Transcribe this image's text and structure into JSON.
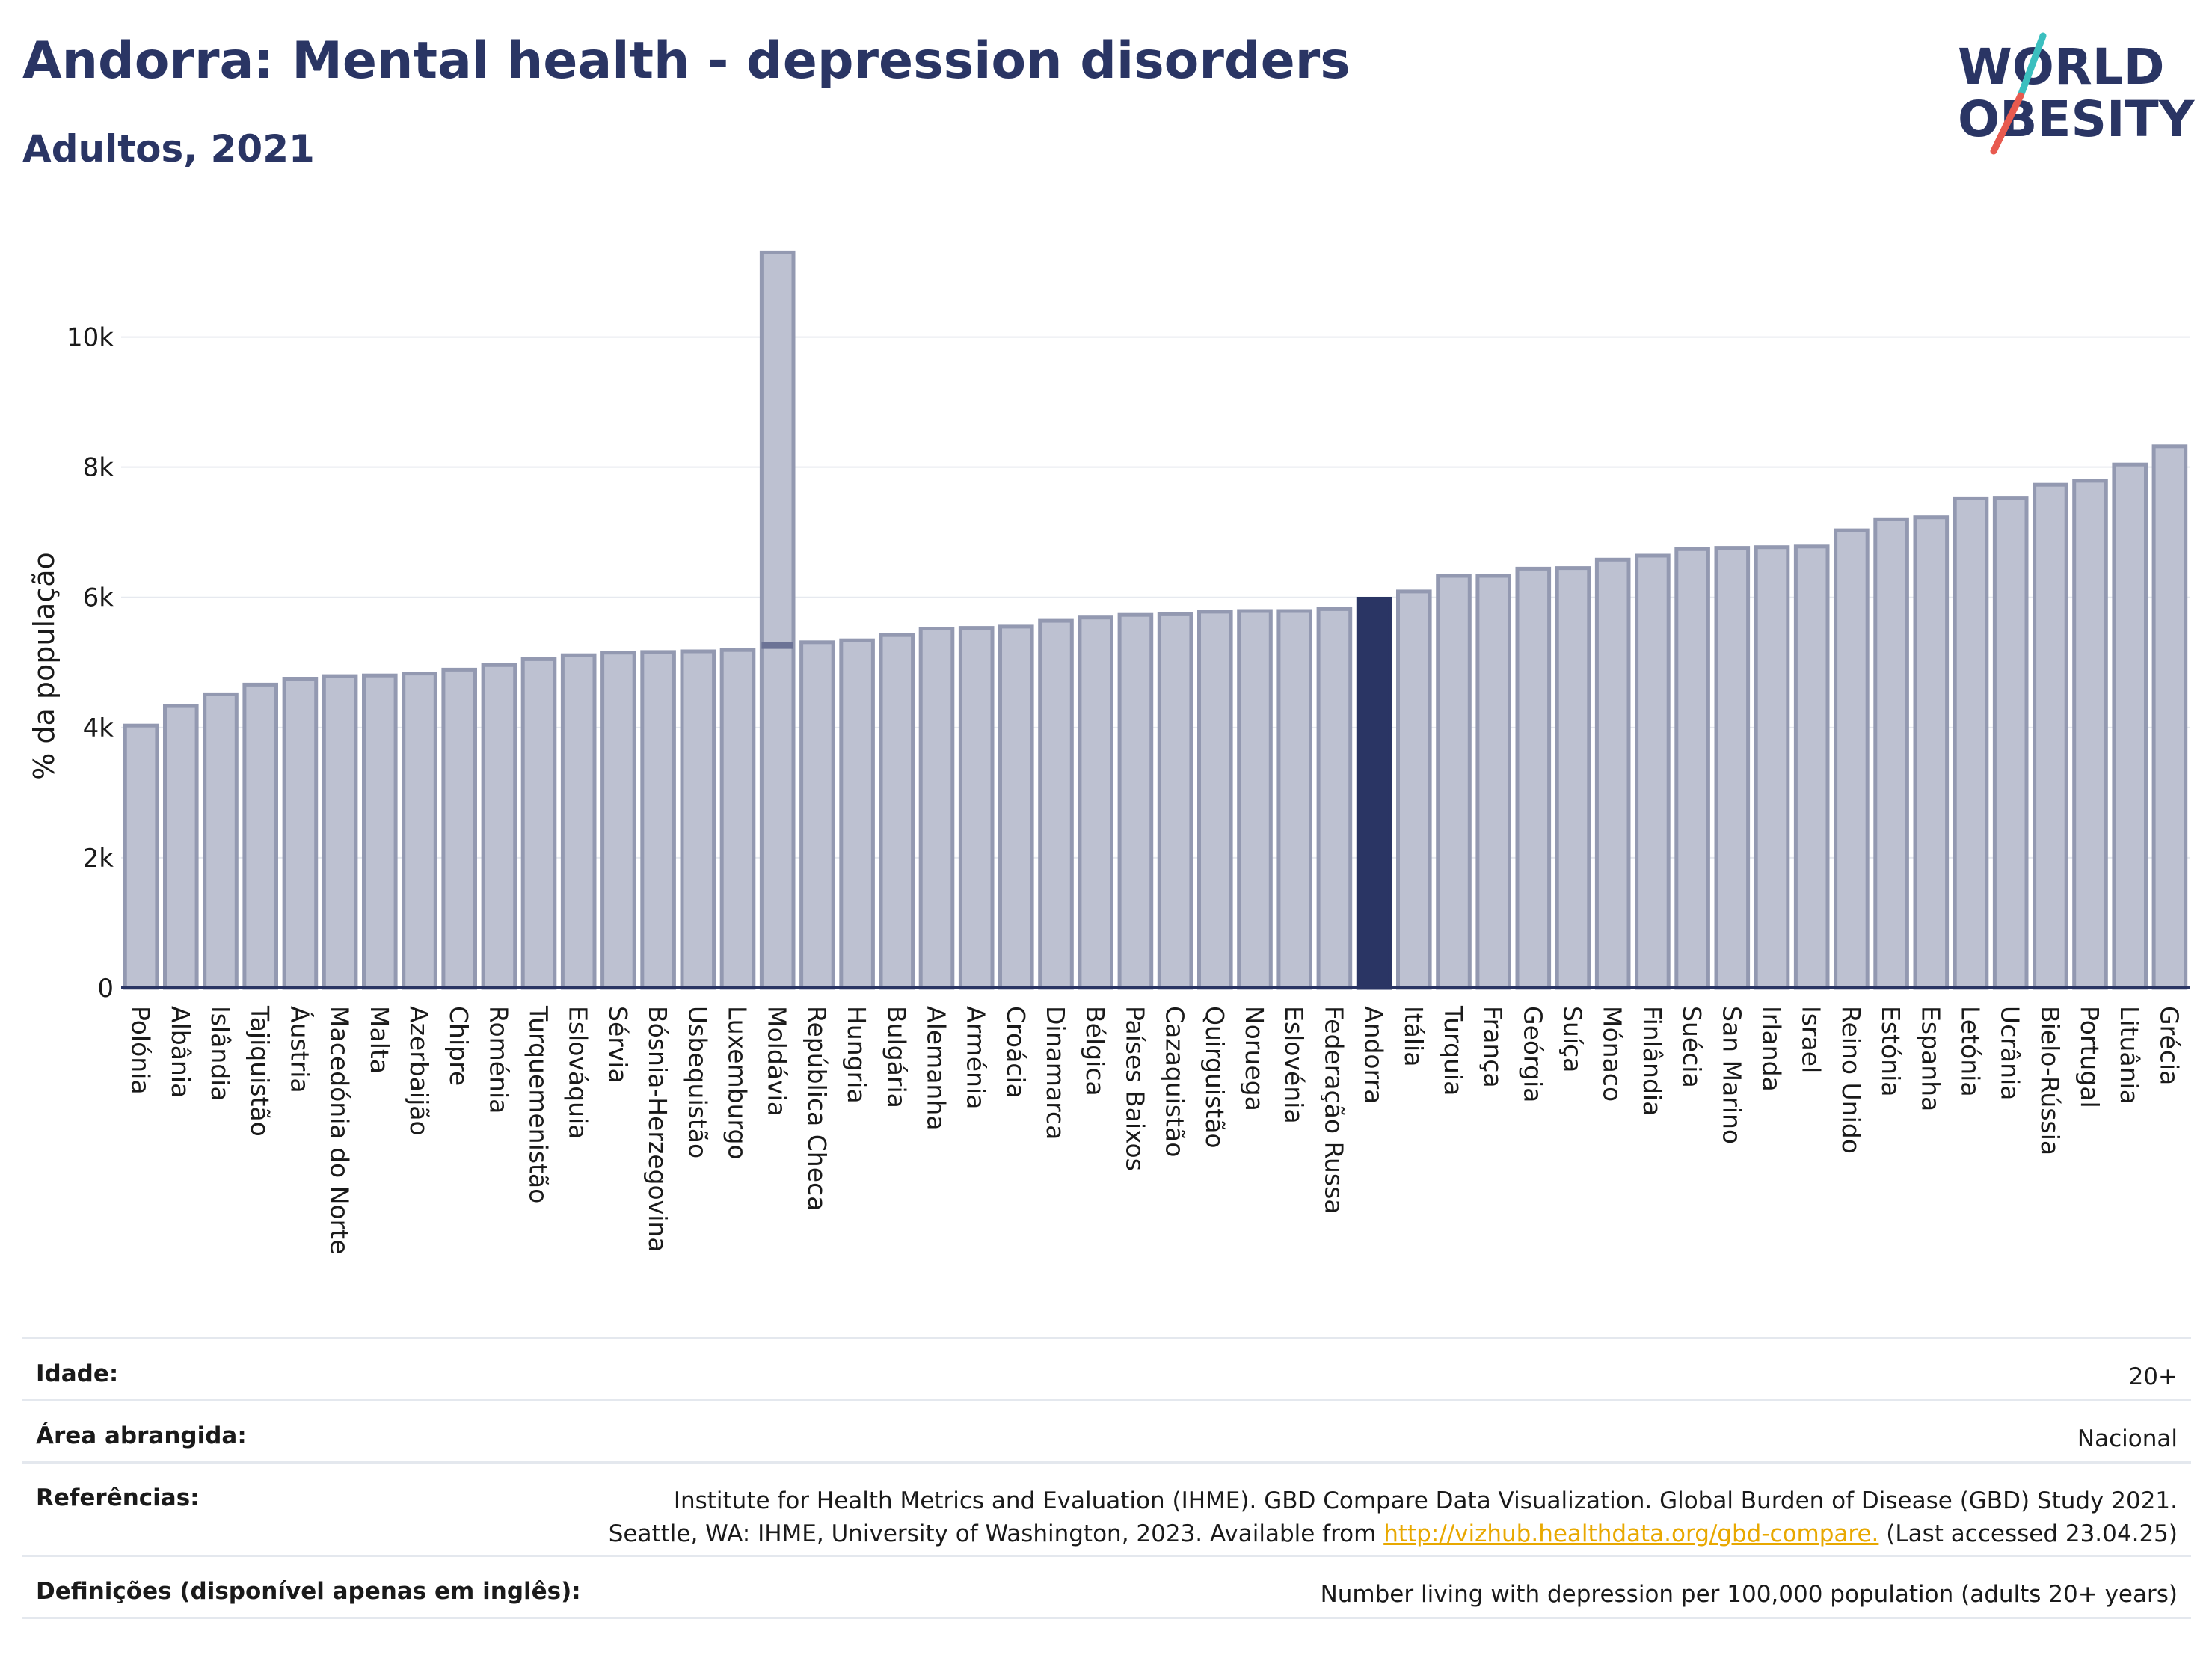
{
  "header": {
    "title": "Andorra: Mental health - depression disorders",
    "subtitle": "Adultos, 2021"
  },
  "logo": {
    "line1": "WORLD",
    "line2": "OBESITY",
    "color": "#2a3564",
    "slash_top": "#3bbfbf",
    "slash_bottom": "#e85a4f"
  },
  "chart_data": {
    "type": "bar",
    "ylabel": "% da população",
    "ylim": [
      0,
      11500
    ],
    "yticks": [
      0,
      2000,
      4000,
      6000,
      8000,
      10000
    ],
    "ytick_labels": [
      "0",
      "2k",
      "4k",
      "6k",
      "8k",
      "10k"
    ],
    "grid": true,
    "highlight": "Andorra",
    "colors": {
      "bar": "#bdc1d1",
      "bar_edge": "#9399b1",
      "highlight": "#2a3564",
      "axis": "#2a3564"
    },
    "categories": [
      "Polónia",
      "Albânia",
      "Islândia",
      "Tajiquistão",
      "Áustria",
      "Macedónia do Norte",
      "Malta",
      "Azerbaijão",
      "Chipre",
      "Roménia",
      "Turquemenistão",
      "Eslováquia",
      "Sérvia",
      "Bósnia-Herzegovina",
      "Usbequistão",
      "Luxemburgo",
      "Moldávia",
      "República Checa",
      "Hungria",
      "Bulgária",
      "Alemanha",
      "Arménia",
      "Croácia",
      "Dinamarca",
      "Bélgica",
      "Países Baixos",
      "Cazaquistão",
      "Quirguistão",
      "Noruega",
      "Eslovénia",
      "Federação Russa",
      "Andorra",
      "Itália",
      "Turquia",
      "França",
      "Geórgia",
      "Suíça",
      "Mónaco",
      "Finlândia",
      "Suécia",
      "San Marino",
      "Irlanda",
      "Israel",
      "Reino Unido",
      "Estónia",
      "Espanha",
      "Letónia",
      "Ucrânia",
      "Bielo-Rússia",
      "Portugal",
      "Lituânia",
      "Grécia"
    ],
    "values": [
      4030,
      4330,
      4510,
      4660,
      4750,
      4790,
      4800,
      4830,
      4890,
      4960,
      5050,
      5110,
      5150,
      5160,
      5170,
      5190,
      11300,
      5310,
      5340,
      5420,
      5520,
      5530,
      5550,
      5640,
      5690,
      5730,
      5740,
      5780,
      5790,
      5790,
      5820,
      5980,
      6090,
      6330,
      6330,
      6440,
      6450,
      6580,
      6640,
      6740,
      6760,
      6770,
      6780,
      7030,
      7200,
      7230,
      7520,
      7530,
      7730,
      7790,
      8040,
      8320
    ],
    "secondary_mark": {
      "category": "Moldávia",
      "value": 5260
    }
  },
  "info": {
    "age_label": "Idade:",
    "age_value": "20+",
    "area_label": "Área abrangida:",
    "area_value": "Nacional",
    "ref_label": "Referências:",
    "ref_line1": "Institute for Health Metrics and Evaluation (IHME). GBD Compare Data Visualization. Global Burden of Disease (GBD) Study 2021.",
    "ref_line2_pre": "Seattle, WA: IHME, University of Washington, 2023. Available from ",
    "ref_link": "http://vizhub.healthdata.org/gbd-compare.",
    "ref_line2_post": " (Last accessed 23.04.25)",
    "def_label": "Definições (disponível apenas em inglês):",
    "def_value": "Number living with depression per 100,000 population (adults 20+ years)"
  }
}
